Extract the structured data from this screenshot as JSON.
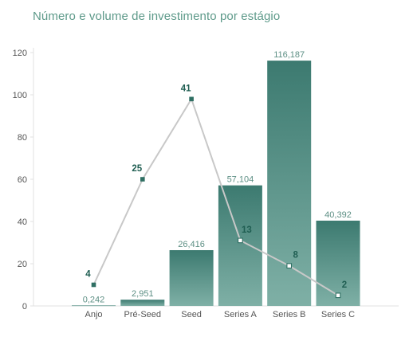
{
  "chart_data": {
    "type": "bar",
    "title": "Número e volume de investimento por estágio",
    "xlabel": "",
    "ylabel": "",
    "categories": [
      "Anjo",
      "Pré-Seed",
      "Seed",
      "Series A",
      "Series B",
      "Series C"
    ],
    "ylim": [
      0,
      120
    ],
    "yticks": [
      0,
      20,
      40,
      60,
      80,
      100,
      120
    ],
    "grid": false,
    "legend": "none",
    "series": [
      {
        "type": "bar",
        "values": [
          0.242,
          2.951,
          26.416,
          57.104,
          116.187,
          40.392
        ],
        "labels": [
          "0,242",
          "2,951",
          "26,416",
          "57,104",
          "116,187",
          "40,392"
        ],
        "color_top": "#3c7a70",
        "color_bottom": "#7fb0a6"
      },
      {
        "type": "line",
        "values": [
          10,
          60,
          98,
          31,
          19,
          5
        ],
        "labels": [
          "4",
          "25",
          "41",
          "13",
          "8",
          "2"
        ],
        "color": "#c8c8c8",
        "marker_color": "#2f6f63"
      }
    ]
  }
}
